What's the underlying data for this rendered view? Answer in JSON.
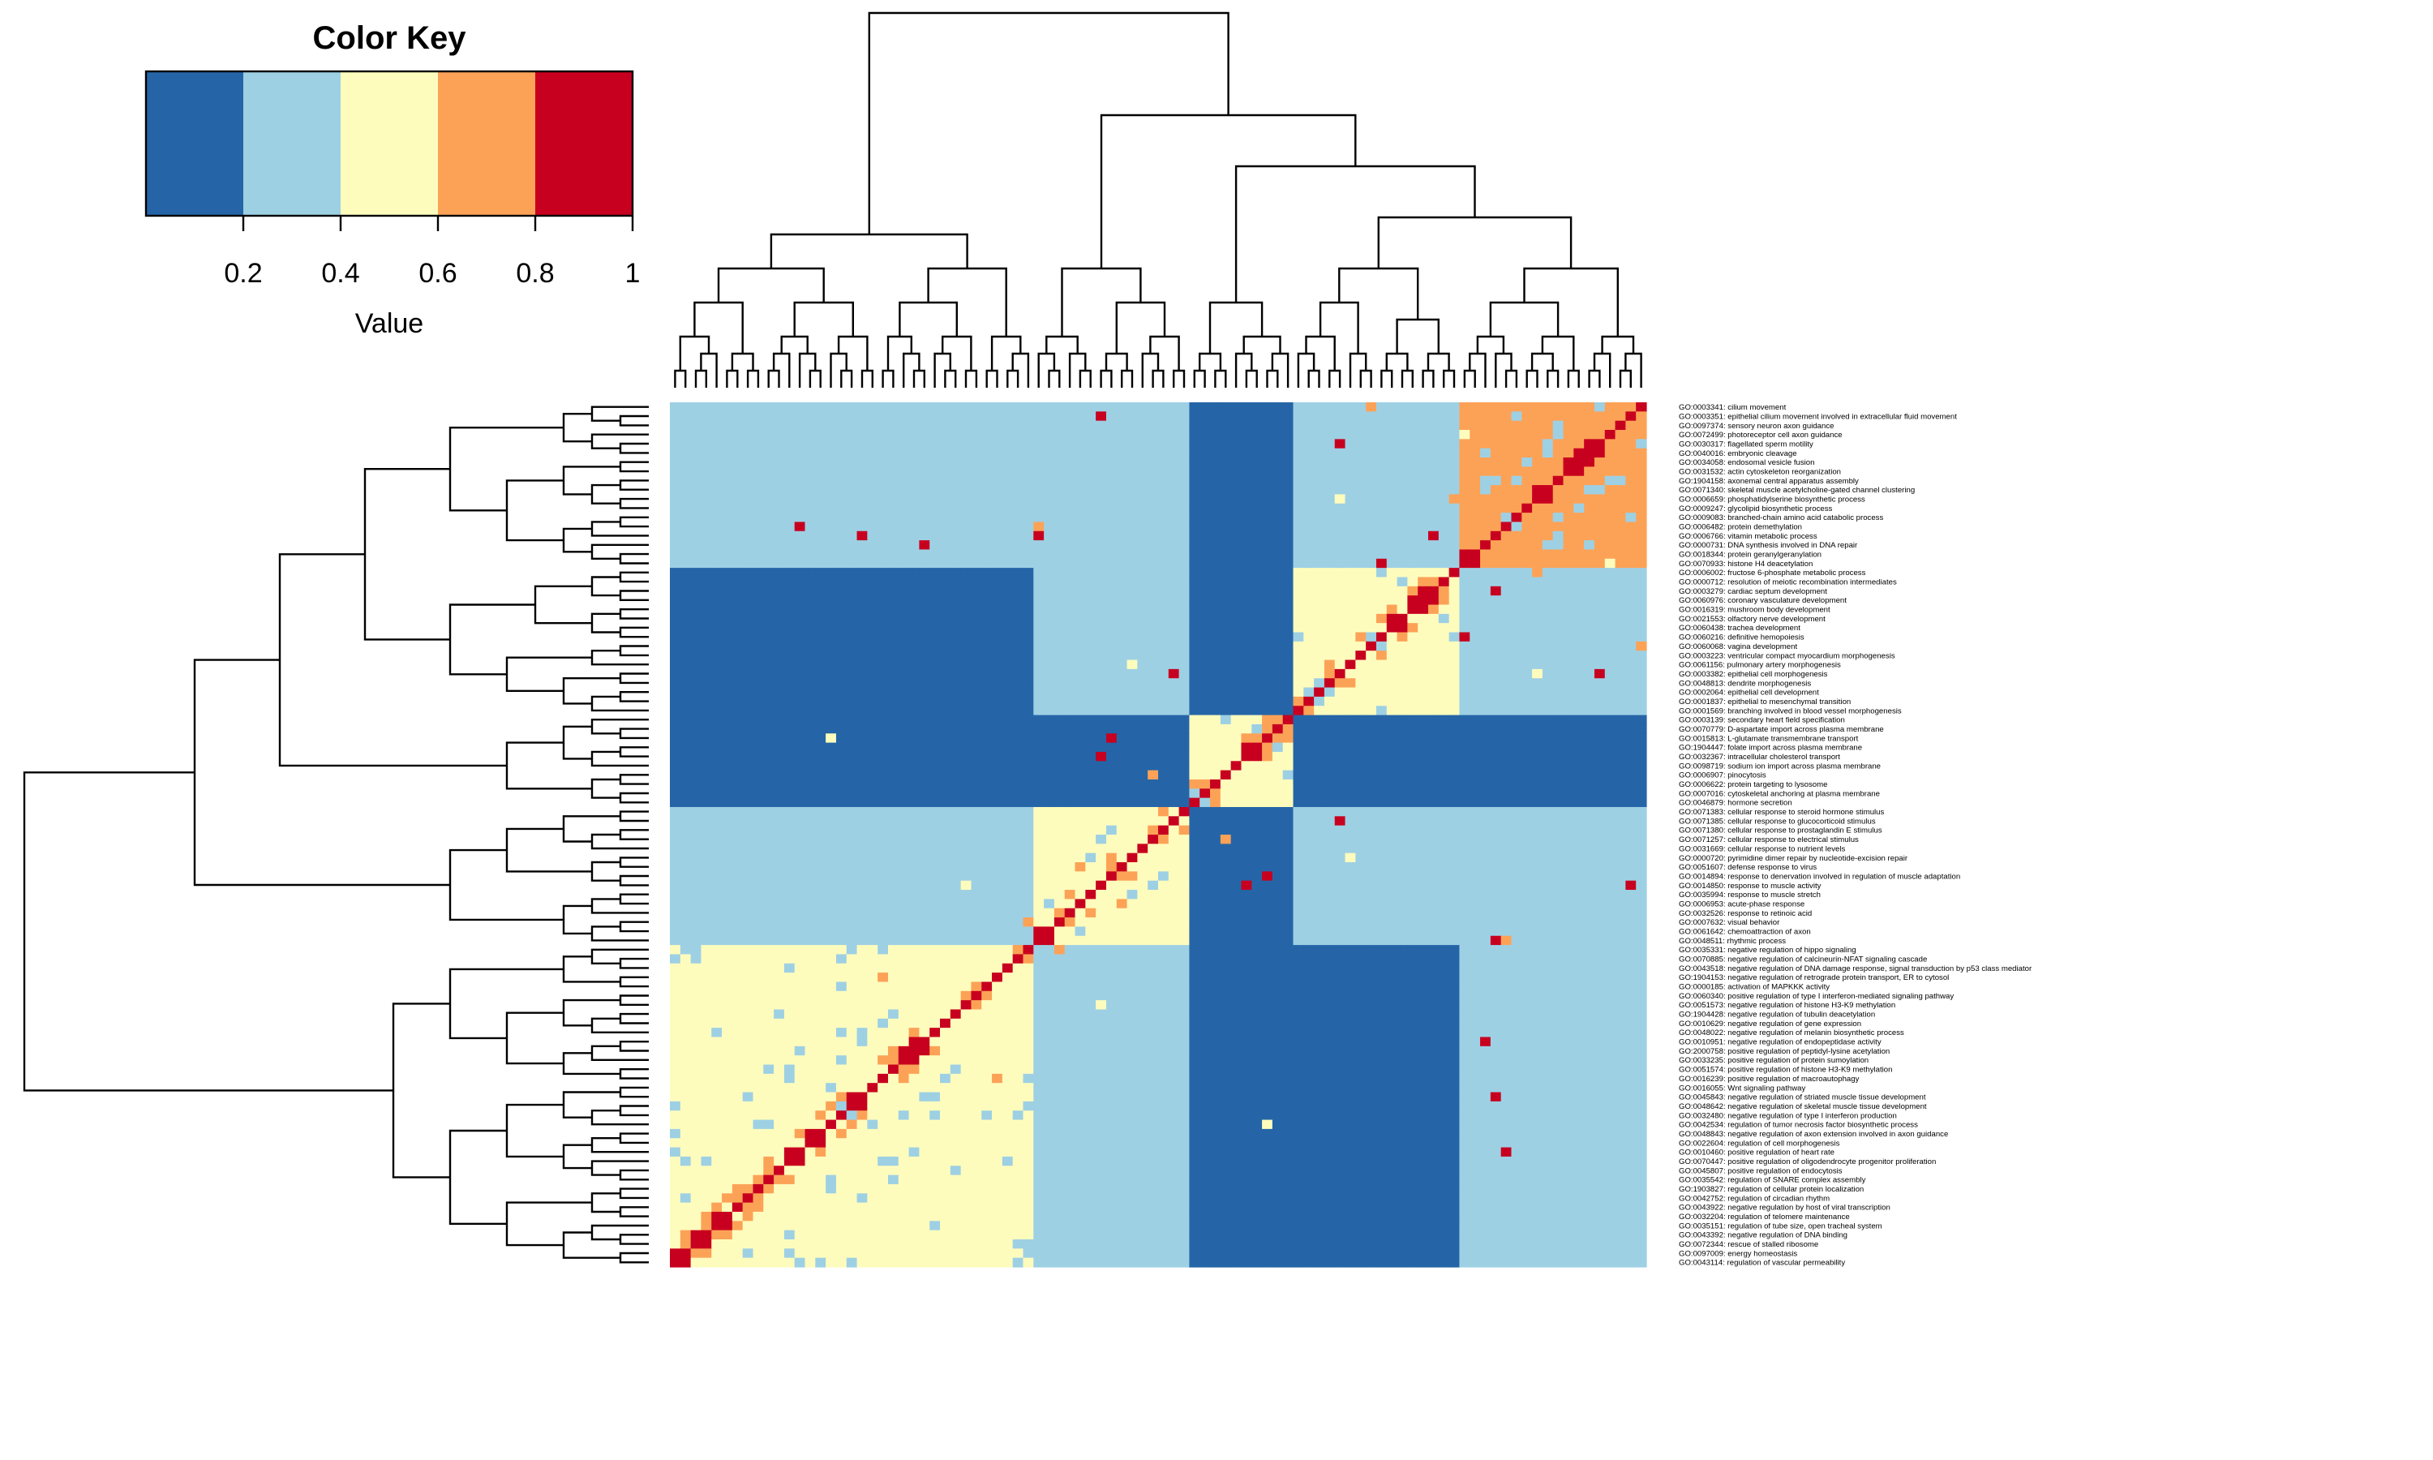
{
  "chart_data": {
    "type": "heatmap",
    "title": "",
    "xlabel": "",
    "ylabel": "",
    "n_terms": 94,
    "color_key": {
      "title": "Color Key",
      "label": "Value",
      "ticks": [
        "0.2",
        "0.4",
        "0.6",
        "0.8",
        "1"
      ],
      "range": [
        0,
        1
      ],
      "breaks": [
        0,
        0.2,
        0.4,
        0.6,
        0.8,
        1.0
      ],
      "colors": [
        "#2565a7",
        "#9ed0e4",
        "#fefcbd",
        "#fca257",
        "#c8001f"
      ]
    },
    "clusters": [
      {
        "start": 0,
        "end": 17,
        "value": 0.7
      },
      {
        "start": 18,
        "end": 33,
        "value": 0.5
      },
      {
        "start": 34,
        "end": 43,
        "value": 0.5
      },
      {
        "start": 44,
        "end": 58,
        "value": 0.5
      },
      {
        "start": 59,
        "end": 93,
        "value": 0.5
      }
    ],
    "background_value": 0.1,
    "related_blocks": [
      {
        "r": [
          0,
          17
        ],
        "c": [
          59,
          93
        ],
        "value": 0.3
      },
      {
        "r": [
          44,
          58
        ],
        "c": [
          59,
          93
        ],
        "value": 0.3
      },
      {
        "r": [
          0,
          33
        ],
        "c": [
          44,
          58
        ],
        "value": 0.3
      },
      {
        "r": [
          59,
          93
        ],
        "c": [
          44,
          58
        ],
        "value": 0.3
      },
      {
        "r": [
          0,
          17
        ],
        "c": [
          18,
          33
        ],
        "value": 0.3
      }
    ],
    "row_labels": [
      "GO:0003341: cilium movement",
      "GO:0003351: epithelial cilium movement involved in extracellular fluid movement",
      "GO:0097374: sensory neuron axon guidance",
      "GO:0072499: photoreceptor cell axon guidance",
      "GO:0030317: flagellated sperm motility",
      "GO:0040016: embryonic cleavage",
      "GO:0034058: endosomal vesicle fusion",
      "GO:0031532: actin cytoskeleton reorganization",
      "GO:1904158: axonemal central apparatus assembly",
      "GO:0071340: skeletal muscle acetylcholine-gated channel clustering",
      "GO:0006659: phosphatidylserine biosynthetic process",
      "GO:0009247: glycolipid biosynthetic process",
      "GO:0009083: branched-chain amino acid catabolic process",
      "GO:0006482: protein demethylation",
      "GO:0006766: vitamin metabolic process",
      "GO:0000731: DNA synthesis involved in DNA repair",
      "GO:0018344: protein geranylgeranylation",
      "GO:0070933: histone H4 deacetylation",
      "GO:0006002: fructose 6-phosphate metabolic process",
      "GO:0000712: resolution of meiotic recombination intermediates",
      "GO:0003279: cardiac septum development",
      "GO:0060976: coronary vasculature development",
      "GO:0016319: mushroom body development",
      "GO:0021553: olfactory nerve development",
      "GO:0060438: trachea development",
      "GO:0060216: definitive hemopoiesis",
      "GO:0060068: vagina development",
      "GO:0003223: ventricular compact myocardium morphogenesis",
      "GO:0061156: pulmonary artery morphogenesis",
      "GO:0003382: epithelial cell morphogenesis",
      "GO:0048813: dendrite morphogenesis",
      "GO:0002064: epithelial cell development",
      "GO:0001837: epithelial to mesenchymal transition",
      "GO:0001569: branching involved in blood vessel morphogenesis",
      "GO:0003139: secondary heart field specification",
      "GO:0070779: D-aspartate import across plasma membrane",
      "GO:0015813: L-glutamate transmembrane transport",
      "GO:1904447: folate import across plasma membrane",
      "GO:0032367: intracellular cholesterol transport",
      "GO:0098719: sodium ion import across plasma membrane",
      "GO:0006907: pinocytosis",
      "GO:0006622: protein targeting to lysosome",
      "GO:0007016: cytoskeletal anchoring at plasma membrane",
      "GO:0046879: hormone secretion",
      "GO:0071383: cellular response to steroid hormone stimulus",
      "GO:0071385: cellular response to glucocorticoid stimulus",
      "GO:0071380: cellular response to prostaglandin E stimulus",
      "GO:0071257: cellular response to electrical stimulus",
      "GO:0031669: cellular response to nutrient levels",
      "GO:0000720: pyrimidine dimer repair by nucleotide-excision repair",
      "GO:0051607: defense response to virus",
      "GO:0014894: response to denervation involved in regulation of muscle adaptation",
      "GO:0014850: response to muscle activity",
      "GO:0035994: response to muscle stretch",
      "GO:0006953: acute-phase response",
      "GO:0032526: response to retinoic acid",
      "GO:0007632: visual behavior",
      "GO:0061642: chemoattraction of axon",
      "GO:0048511: rhythmic process",
      "GO:0035331: negative regulation of hippo signaling",
      "GO:0070885: negative regulation of calcineurin-NFAT signaling cascade",
      "GO:0043518: negative regulation of DNA damage response, signal transduction by p53 class mediator",
      "GO:1904153: negative regulation of retrograde protein transport, ER to cytosol",
      "GO:0000185: activation of MAPKKK activity",
      "GO:0060340: positive regulation of type I interferon-mediated signaling pathway",
      "GO:0051573: negative regulation of histone H3-K9 methylation",
      "GO:1904428: negative regulation of tubulin deacetylation",
      "GO:0010629: negative regulation of gene expression",
      "GO:0048022: negative regulation of melanin biosynthetic process",
      "GO:0010951: negative regulation of endopeptidase activity",
      "GO:2000758: positive regulation of peptidyl-lysine acetylation",
      "GO:0033235: positive regulation of protein sumoylation",
      "GO:0051574: positive regulation of histone H3-K9 methylation",
      "GO:0016239: positive regulation of macroautophagy",
      "GO:0016055: Wnt signaling pathway",
      "GO:0045843: negative regulation of striated muscle tissue development",
      "GO:0048642: negative regulation of skeletal muscle tissue development",
      "GO:0032480: negative regulation of type I interferon production",
      "GO:0042534: regulation of tumor necrosis factor biosynthetic process",
      "GO:0048843: negative regulation of axon extension involved in axon guidance",
      "GO:0022604: regulation of cell morphogenesis",
      "GO:0010460: positive regulation of heart rate",
      "GO:0070447: positive regulation of oligodendrocyte progenitor proliferation",
      "GO:0045807: positive regulation of endocytosis",
      "GO:0035542: regulation of SNARE complex assembly",
      "GO:1903827: regulation of cellular protein localization",
      "GO:0042752: regulation of circadian rhythm",
      "GO:0043922: negative regulation by host of viral transcription",
      "GO:0032204: regulation of telomere maintenance",
      "GO:0035151: regulation of tube size, open tracheal system",
      "GO:0043392: negative regulation of DNA binding",
      "GO:0072344: rescue of stalled ribosome",
      "GO:0097009: energy homeostasis",
      "GO:0043114: regulation of vascular permeability"
    ]
  }
}
